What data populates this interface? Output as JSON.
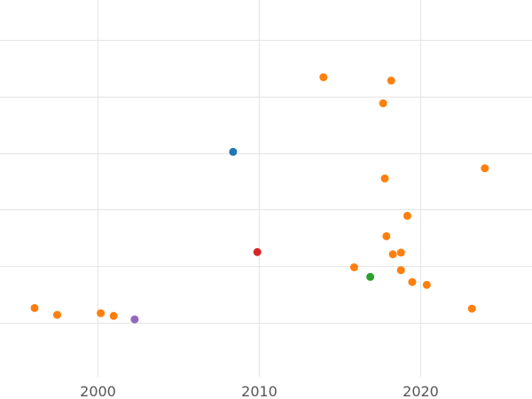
{
  "chart_data": {
    "type": "scatter",
    "title": "",
    "xlabel": "",
    "ylabel": "",
    "x_ticks": [
      "2000",
      "2010",
      "2020"
    ],
    "xlim": [
      1994,
      2027
    ],
    "ylim": [
      -0.25,
      5.5
    ],
    "y_gridlines": [
      0,
      1,
      2,
      3,
      4,
      5
    ],
    "grid": true,
    "legend": "none",
    "colors": {
      "orange": "#ff7f0e",
      "blue": "#1f77b4",
      "red": "#d62728",
      "green": "#2ca02c",
      "purple": "#9467bd",
      "grid": "#e5e5e5",
      "tick_text": "#555555"
    },
    "points": [
      {
        "x": 1996.1,
        "y": 0.26,
        "color": "orange"
      },
      {
        "x": 1997.5,
        "y": 0.14,
        "color": "orange"
      },
      {
        "x": 2000.2,
        "y": 0.17,
        "color": "orange"
      },
      {
        "x": 2001.0,
        "y": 0.12,
        "color": "orange"
      },
      {
        "x": 2002.3,
        "y": 0.06,
        "color": "purple"
      },
      {
        "x": 2008.4,
        "y": 3.02,
        "color": "blue"
      },
      {
        "x": 2009.9,
        "y": 1.25,
        "color": "red"
      },
      {
        "x": 2014.0,
        "y": 4.34,
        "color": "orange"
      },
      {
        "x": 2018.2,
        "y": 4.28,
        "color": "orange"
      },
      {
        "x": 2017.7,
        "y": 3.88,
        "color": "orange"
      },
      {
        "x": 2024.0,
        "y": 2.73,
        "color": "orange"
      },
      {
        "x": 2017.8,
        "y": 2.55,
        "color": "orange"
      },
      {
        "x": 2019.2,
        "y": 1.89,
        "color": "orange"
      },
      {
        "x": 2017.9,
        "y": 1.53,
        "color": "orange"
      },
      {
        "x": 2018.3,
        "y": 1.21,
        "color": "orange"
      },
      {
        "x": 2018.8,
        "y": 1.24,
        "color": "orange"
      },
      {
        "x": 2015.9,
        "y": 0.98,
        "color": "orange"
      },
      {
        "x": 2016.9,
        "y": 0.81,
        "color": "green"
      },
      {
        "x": 2018.8,
        "y": 0.93,
        "color": "orange"
      },
      {
        "x": 2019.5,
        "y": 0.72,
        "color": "orange"
      },
      {
        "x": 2020.4,
        "y": 0.67,
        "color": "orange"
      },
      {
        "x": 2023.2,
        "y": 0.25,
        "color": "orange"
      }
    ]
  }
}
